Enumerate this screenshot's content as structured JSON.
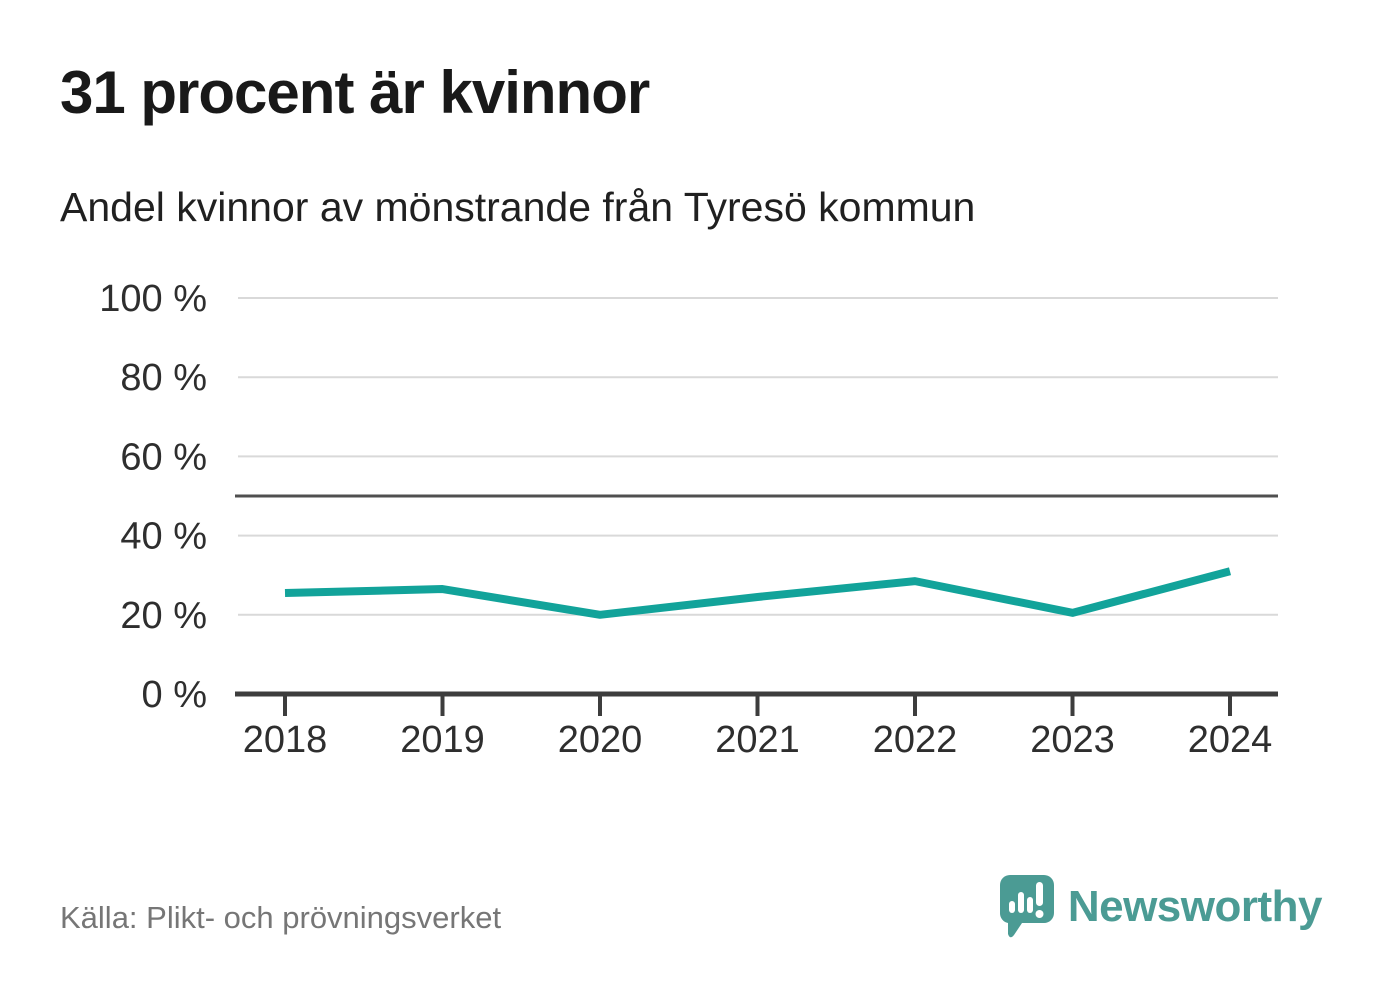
{
  "header": {
    "title": "31 procent är kvinnor",
    "subtitle": "Andel kvinnor av mönstrande från Tyresö kommun"
  },
  "chart_data": {
    "type": "line",
    "title": "31 procent är kvinnor",
    "subtitle": "Andel kvinnor av mönstrande från Tyresö kommun",
    "x": [
      2018,
      2019,
      2020,
      2021,
      2022,
      2023,
      2024
    ],
    "values": [
      25.5,
      26.5,
      20,
      24.5,
      28.5,
      20.5,
      31
    ],
    "series_name": "Andel kvinnor av mönstrande",
    "xlabel": "",
    "ylabel": "",
    "ylim": [
      0,
      100
    ],
    "yticks": [
      0,
      20,
      40,
      60,
      80,
      100
    ],
    "ytick_suffix": " %",
    "reference_line_value": 50,
    "grid": true,
    "legend": "none"
  },
  "footer": {
    "source": "Källa: Plikt- och prövningsverket",
    "brand": "Newsworthy"
  },
  "colors": {
    "line": "#12a39a",
    "brand_teal": "#4b9b94",
    "grid": "#d9d9d9",
    "reference_line": "#4f4f4f",
    "axis": "#3d3d3d",
    "tick_text": "#2e2e2e",
    "title_text": "#191919",
    "muted_text": "#767676"
  },
  "icons": {
    "logo": "newsworthy-speech-bubble-barchart-icon"
  }
}
